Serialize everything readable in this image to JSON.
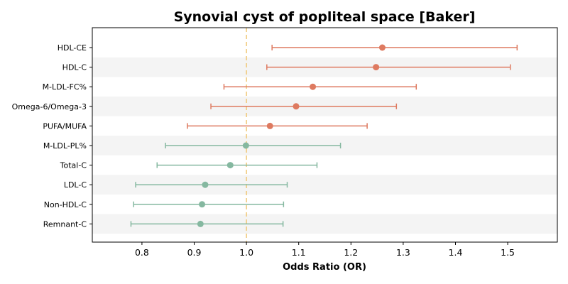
{
  "chart_data": {
    "type": "forest",
    "title": "Synovial cyst of popliteal space [Baker]",
    "xlabel": "Odds Ratio (OR)",
    "xlim": [
      0.705,
      1.595
    ],
    "xticks": [
      "0.8",
      "0.9",
      "1.0",
      "1.1",
      "1.2",
      "1.3",
      "1.4",
      "1.5"
    ],
    "reference_line": 1.0,
    "reference_color": "#f0c878",
    "band_color": "#f4f4f4",
    "colors": {
      "positive": "#de7a60",
      "negative": "#85b8a0"
    },
    "rows": [
      {
        "label": "HDL-CE",
        "or": 1.26,
        "lo": 1.049,
        "hi": 1.518,
        "group": "positive"
      },
      {
        "label": "HDL-C",
        "or": 1.248,
        "lo": 1.039,
        "hi": 1.505,
        "group": "positive"
      },
      {
        "label": "M-LDL-FC%",
        "or": 1.127,
        "lo": 0.957,
        "hi": 1.325,
        "group": "positive"
      },
      {
        "label": "Omega-6/Omega-3",
        "or": 1.095,
        "lo": 0.932,
        "hi": 1.287,
        "group": "positive"
      },
      {
        "label": "PUFA/MUFA",
        "or": 1.045,
        "lo": 0.887,
        "hi": 1.231,
        "group": "positive"
      },
      {
        "label": "M-LDL-PL%",
        "or": 0.999,
        "lo": 0.845,
        "hi": 1.18,
        "group": "negative"
      },
      {
        "label": "Total-C",
        "or": 0.969,
        "lo": 0.829,
        "hi": 1.135,
        "group": "negative"
      },
      {
        "label": "LDL-C",
        "or": 0.921,
        "lo": 0.788,
        "hi": 1.078,
        "group": "negative"
      },
      {
        "label": "Non-HDL-C",
        "or": 0.915,
        "lo": 0.784,
        "hi": 1.071,
        "group": "negative"
      },
      {
        "label": "Remnant-C",
        "or": 0.912,
        "lo": 0.779,
        "hi": 1.07,
        "group": "negative"
      }
    ]
  }
}
